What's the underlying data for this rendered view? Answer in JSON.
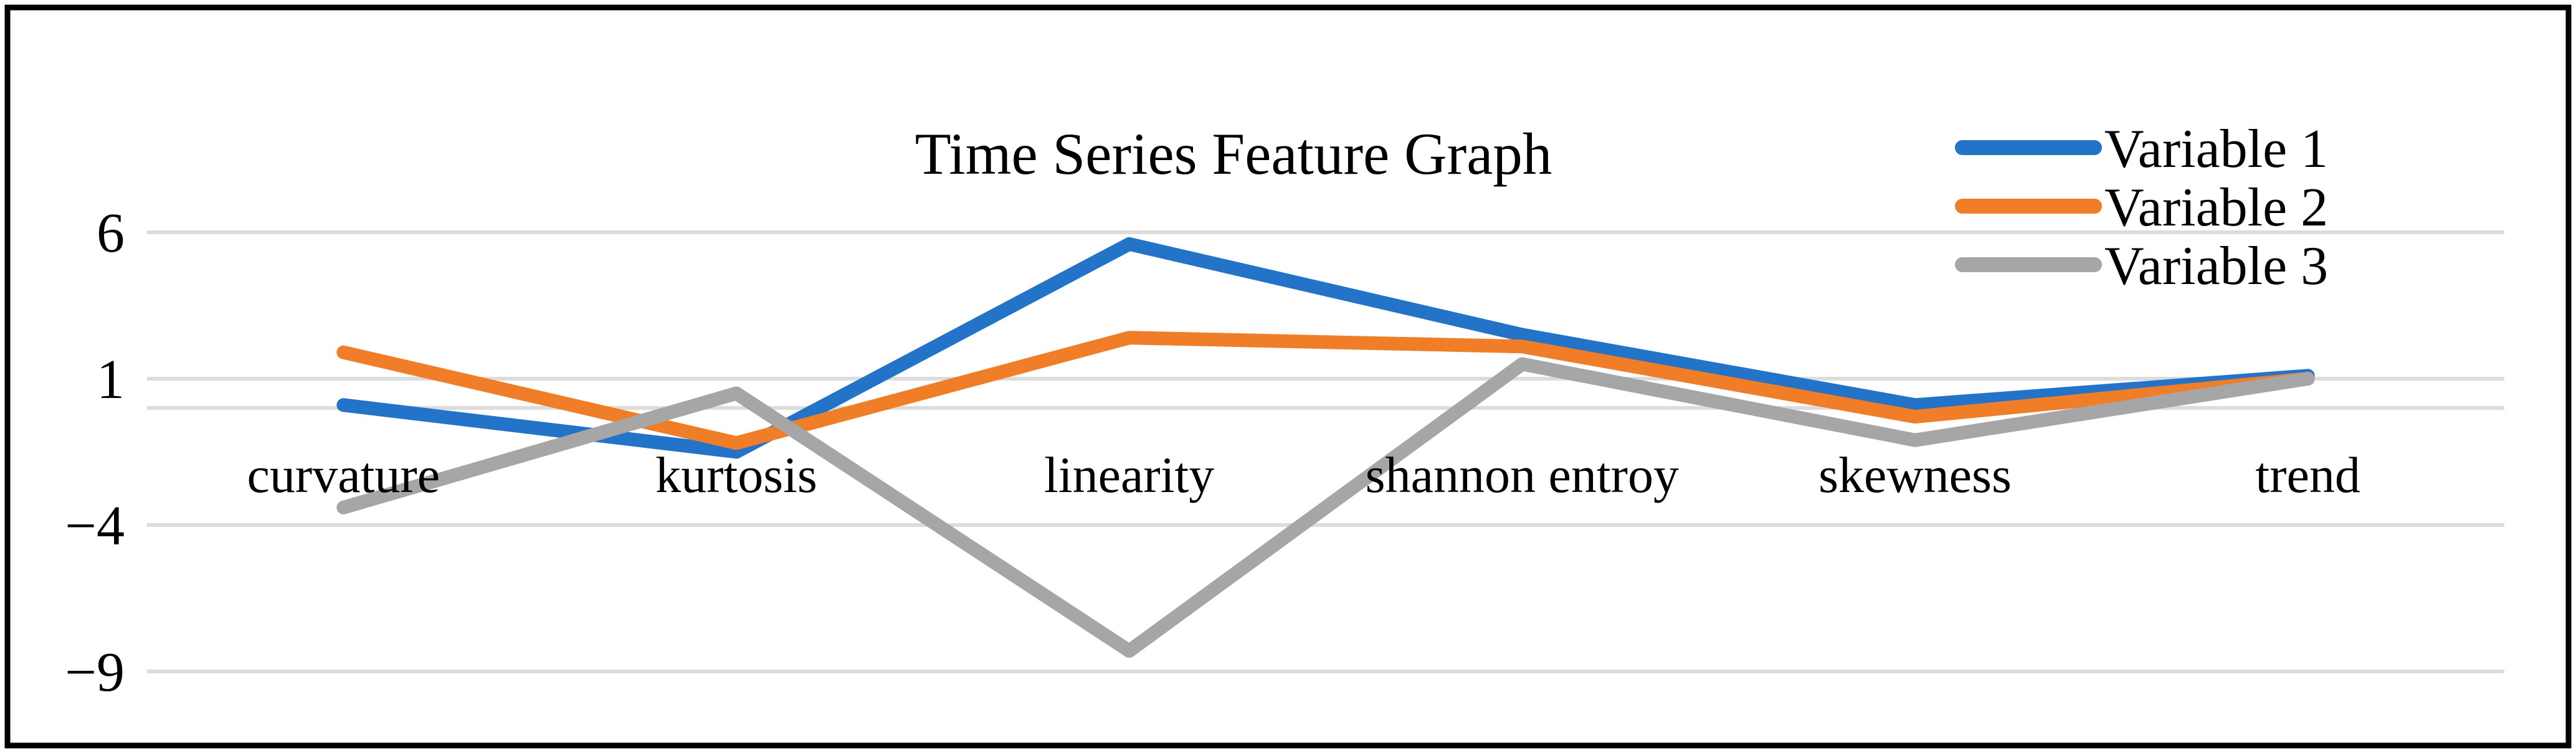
{
  "chart_data": {
    "type": "line",
    "title": "Time Series Feature Graph",
    "categories": [
      "curvature",
      "kurtosis",
      "linearity",
      "shannon entroy",
      "skewness",
      "trend"
    ],
    "series": [
      {
        "name": "Variable 1",
        "color": "#2373C8",
        "values": [
          0.1,
          -1.5,
          5.6,
          2.5,
          0.1,
          1.1
        ]
      },
      {
        "name": "Variable 2",
        "color": "#F07D28",
        "values": [
          1.9,
          -1.2,
          2.4,
          2.1,
          -0.3,
          1.0
        ]
      },
      {
        "name": "Variable 3",
        "color": "#A6A6A6",
        "values": [
          -3.4,
          0.5,
          -8.3,
          1.5,
          -1.1,
          1.0
        ]
      }
    ],
    "yticks": [
      {
        "value": 6,
        "label": "6"
      },
      {
        "value": 1,
        "label": "1"
      },
      {
        "value": -4,
        "label": "−4"
      },
      {
        "value": -9,
        "label": "−9"
      }
    ],
    "zero_axis_line": true,
    "ylim": [
      -10.5,
      7
    ],
    "xlabel": "",
    "ylabel": "",
    "grid": true,
    "legend_position": "top-right",
    "colors": {
      "gridline": "#DCDCDC",
      "background": "#FFFFFF",
      "text": "#000000",
      "border": "#000000"
    }
  }
}
